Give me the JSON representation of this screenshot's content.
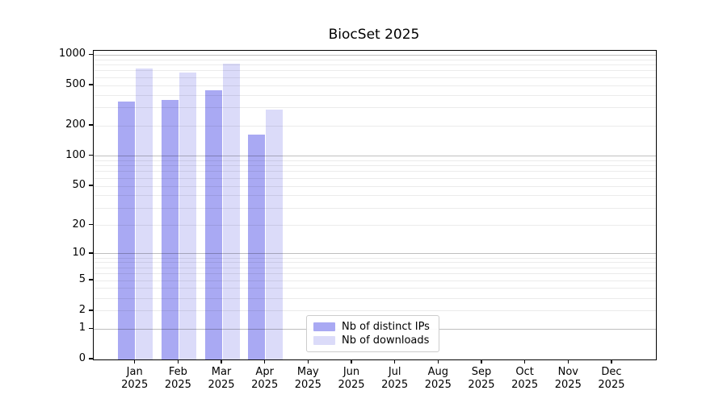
{
  "title": "BiocSet 2025",
  "chart_data": {
    "type": "bar",
    "title": "BiocSet 2025",
    "xlabel": "",
    "ylabel": "",
    "scale": "log10(1+y)",
    "ylim": [
      0,
      1095
    ],
    "grid": true,
    "legend_position": "lower-center",
    "year": "2025",
    "categories": [
      "Jan",
      "Feb",
      "Mar",
      "Apr",
      "May",
      "Jun",
      "Jul",
      "Aug",
      "Sep",
      "Oct",
      "Nov",
      "Dec"
    ],
    "y_ticks": [
      0,
      1,
      2,
      5,
      10,
      20,
      50,
      100,
      200,
      500,
      1000
    ],
    "major_gridline_values": [
      1,
      10,
      100,
      1000
    ],
    "series": [
      {
        "name": "Nb of distinct IPs",
        "color": "#a9a9f3",
        "values": [
          345,
          360,
          450,
          162,
          0,
          0,
          0,
          0,
          0,
          0,
          0,
          0
        ]
      },
      {
        "name": "Nb of downloads",
        "color": "#dbdbf9",
        "values": [
          740,
          670,
          820,
          290,
          0,
          0,
          0,
          0,
          0,
          0,
          0,
          0
        ]
      }
    ]
  },
  "colors": {
    "distinct_ips": "#a9a9f3",
    "downloads": "#dbdbf9",
    "axis": "#000000",
    "major_grid": "#bfbfbf",
    "minor_grid": "#ededed"
  }
}
